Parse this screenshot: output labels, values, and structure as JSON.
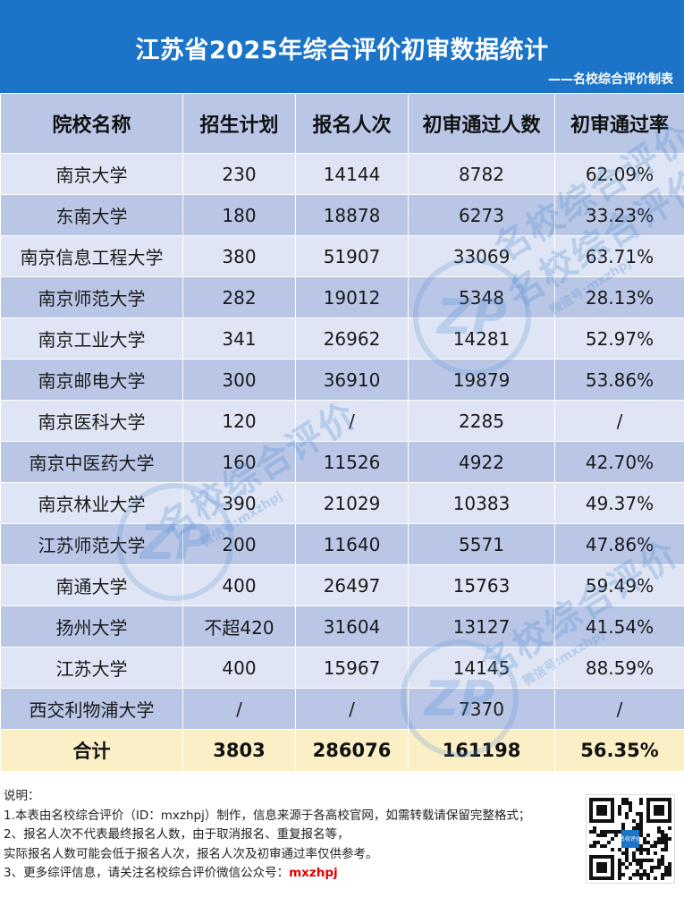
{
  "header": {
    "title": "江苏省2025年综合评价初审数据统计",
    "credit": "——名校综合评价制表"
  },
  "table": {
    "columns": [
      "院校名称",
      "招生计划",
      "报名人次",
      "初审通过人数",
      "初审通过率"
    ],
    "rows": [
      {
        "name": "南京大学",
        "plan": "230",
        "applicants": "14144",
        "passed": "8782",
        "rate": "62.09%"
      },
      {
        "name": "东南大学",
        "plan": "180",
        "applicants": "18878",
        "passed": "6273",
        "rate": "33.23%"
      },
      {
        "name": "南京信息工程大学",
        "plan": "380",
        "applicants": "51907",
        "passed": "33069",
        "rate": "63.71%"
      },
      {
        "name": "南京师范大学",
        "plan": "282",
        "applicants": "19012",
        "passed": "5348",
        "rate": "28.13%"
      },
      {
        "name": "南京工业大学",
        "plan": "341",
        "applicants": "26962",
        "passed": "14281",
        "rate": "52.97%"
      },
      {
        "name": "南京邮电大学",
        "plan": "300",
        "applicants": "36910",
        "passed": "19879",
        "rate": "53.86%"
      },
      {
        "name": "南京医科大学",
        "plan": "120",
        "applicants": "/",
        "passed": "2285",
        "rate": "/"
      },
      {
        "name": "南京中医药大学",
        "plan": "160",
        "applicants": "11526",
        "passed": "4922",
        "rate": "42.70%"
      },
      {
        "name": "南京林业大学",
        "plan": "390",
        "applicants": "21029",
        "passed": "10383",
        "rate": "49.37%"
      },
      {
        "name": "江苏师范大学",
        "plan": "200",
        "applicants": "11640",
        "passed": "5571",
        "rate": "47.86%"
      },
      {
        "name": "南通大学",
        "plan": "400",
        "applicants": "26497",
        "passed": "15763",
        "rate": "59.49%"
      },
      {
        "name": "扬州大学",
        "plan": "不超420",
        "applicants": "31604",
        "passed": "13127",
        "rate": "41.54%"
      },
      {
        "name": "江苏大学",
        "plan": "400",
        "applicants": "15967",
        "passed": "14145",
        "rate": "88.59%"
      },
      {
        "name": "西交利物浦大学",
        "plan": "/",
        "applicants": "/",
        "passed": "7370",
        "rate": "/"
      }
    ],
    "total": {
      "name": "合计",
      "plan": "3803",
      "applicants": "286076",
      "passed": "161198",
      "rate": "56.35%"
    }
  },
  "watermark": {
    "text": "名校综合评价",
    "sub": "微信号:mxzhpj",
    "logo": "ZP"
  },
  "notes": {
    "heading": "说明：",
    "line1": "1.本表由名校综合评价（ID：mxzhpj）制作，信息来源于各高校官网，如需转载请保留完整格式；",
    "line2": "2、报名人次不代表最终报名人数，由于取消报名、重复报名等，",
    "line3": "实际报名人数可能会低于报名人次，报名人次及初审通过率仅供参考。",
    "line4_prefix": "3、更多综评信息，请关注名校综合评价微信公众号：",
    "line4_id": "mxzhpj"
  },
  "qr": {
    "center_label": "名校评价"
  },
  "colors": {
    "header_bg": "#1b74c8",
    "row_light": "#dfe5f4",
    "row_dark": "#b9c6e6",
    "total_bg": "#fbefc6",
    "accent_red": "#e00000"
  }
}
